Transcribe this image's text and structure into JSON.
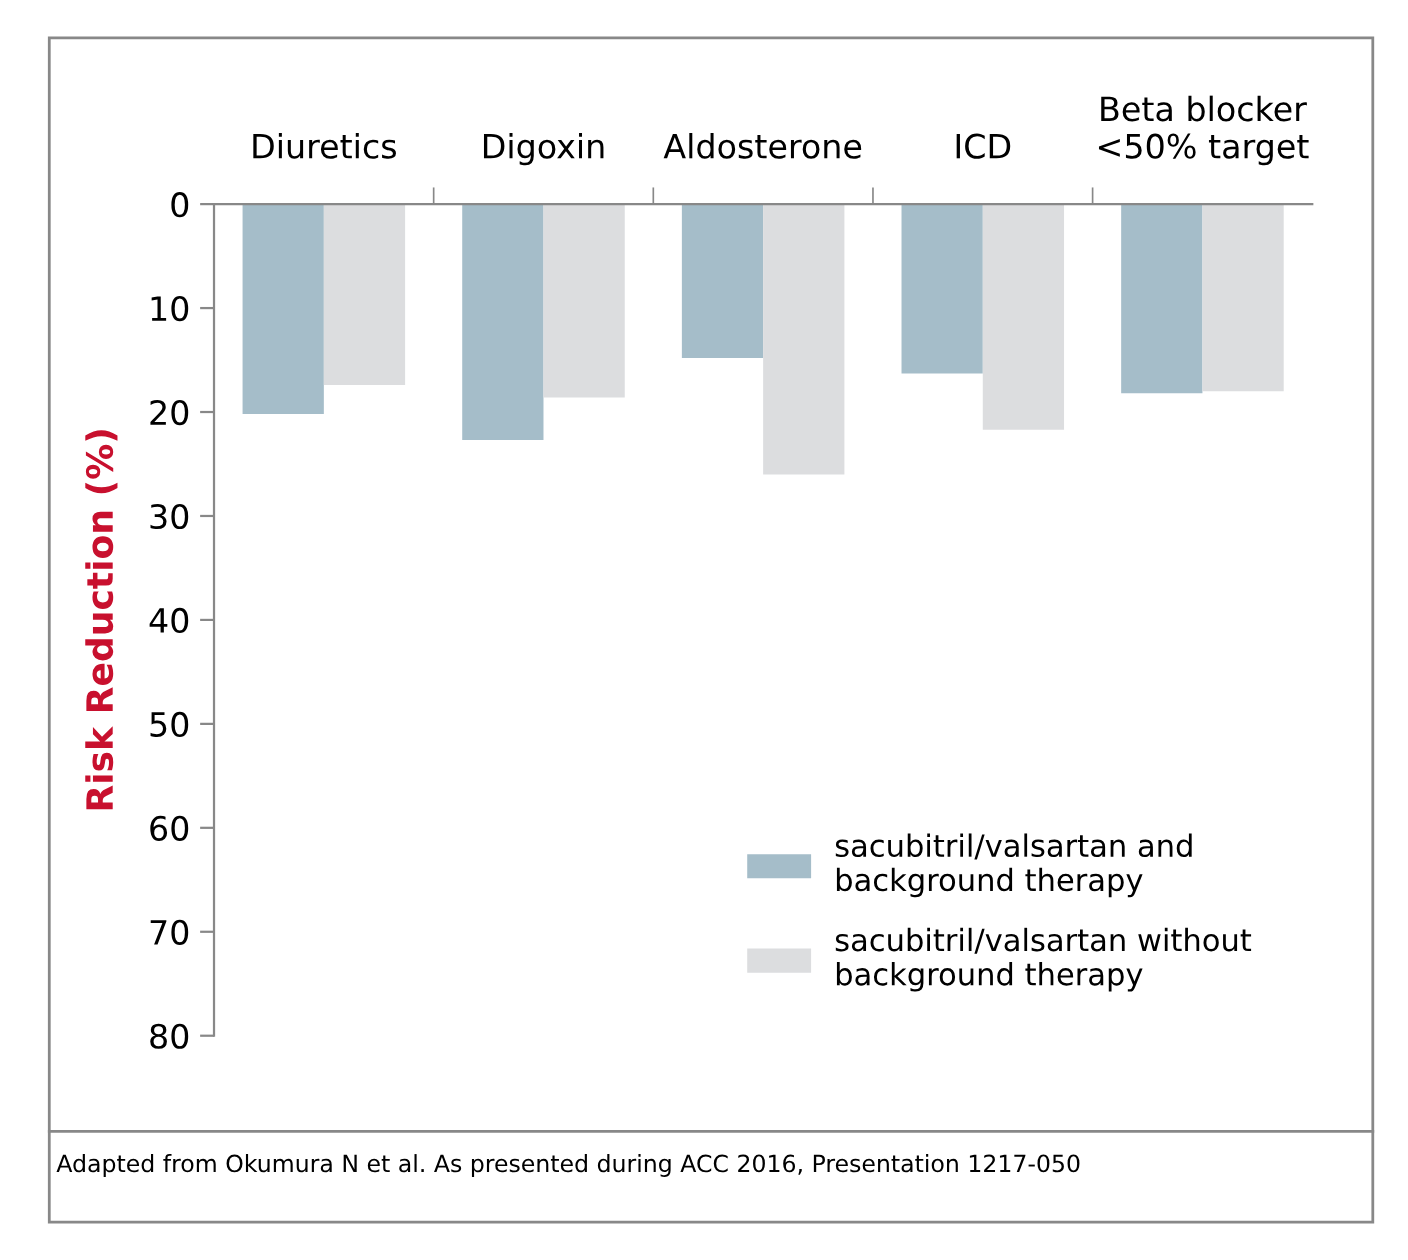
{
  "chart_data": {
    "type": "bar",
    "categories": [
      "Diuretics",
      "Digoxin",
      "Aldosterone",
      "ICD",
      "Beta blocker\n<50% target"
    ],
    "series": [
      {
        "name": "sacubitril/valsartan and\nbackground therapy",
        "color": "#a5bdc9",
        "values": [
          20.2,
          22.7,
          14.8,
          16.3,
          18.2
        ]
      },
      {
        "name": "sacubitril/valsartan without\nbackground therapy",
        "color": "#dcdddf",
        "values": [
          17.4,
          18.6,
          26.0,
          21.7,
          18.0
        ]
      }
    ],
    "ylabel": "Risk Reduction (%)",
    "ylim": [
      80,
      0
    ],
    "yticks": [
      0,
      10,
      20,
      30,
      40,
      50,
      60,
      70,
      80
    ],
    "grid": false,
    "legend": "bottom right",
    "annotations": [
      "Adapted from Okumura N et al. As presented during ACC 2016, Presentation 1217-050"
    ]
  }
}
